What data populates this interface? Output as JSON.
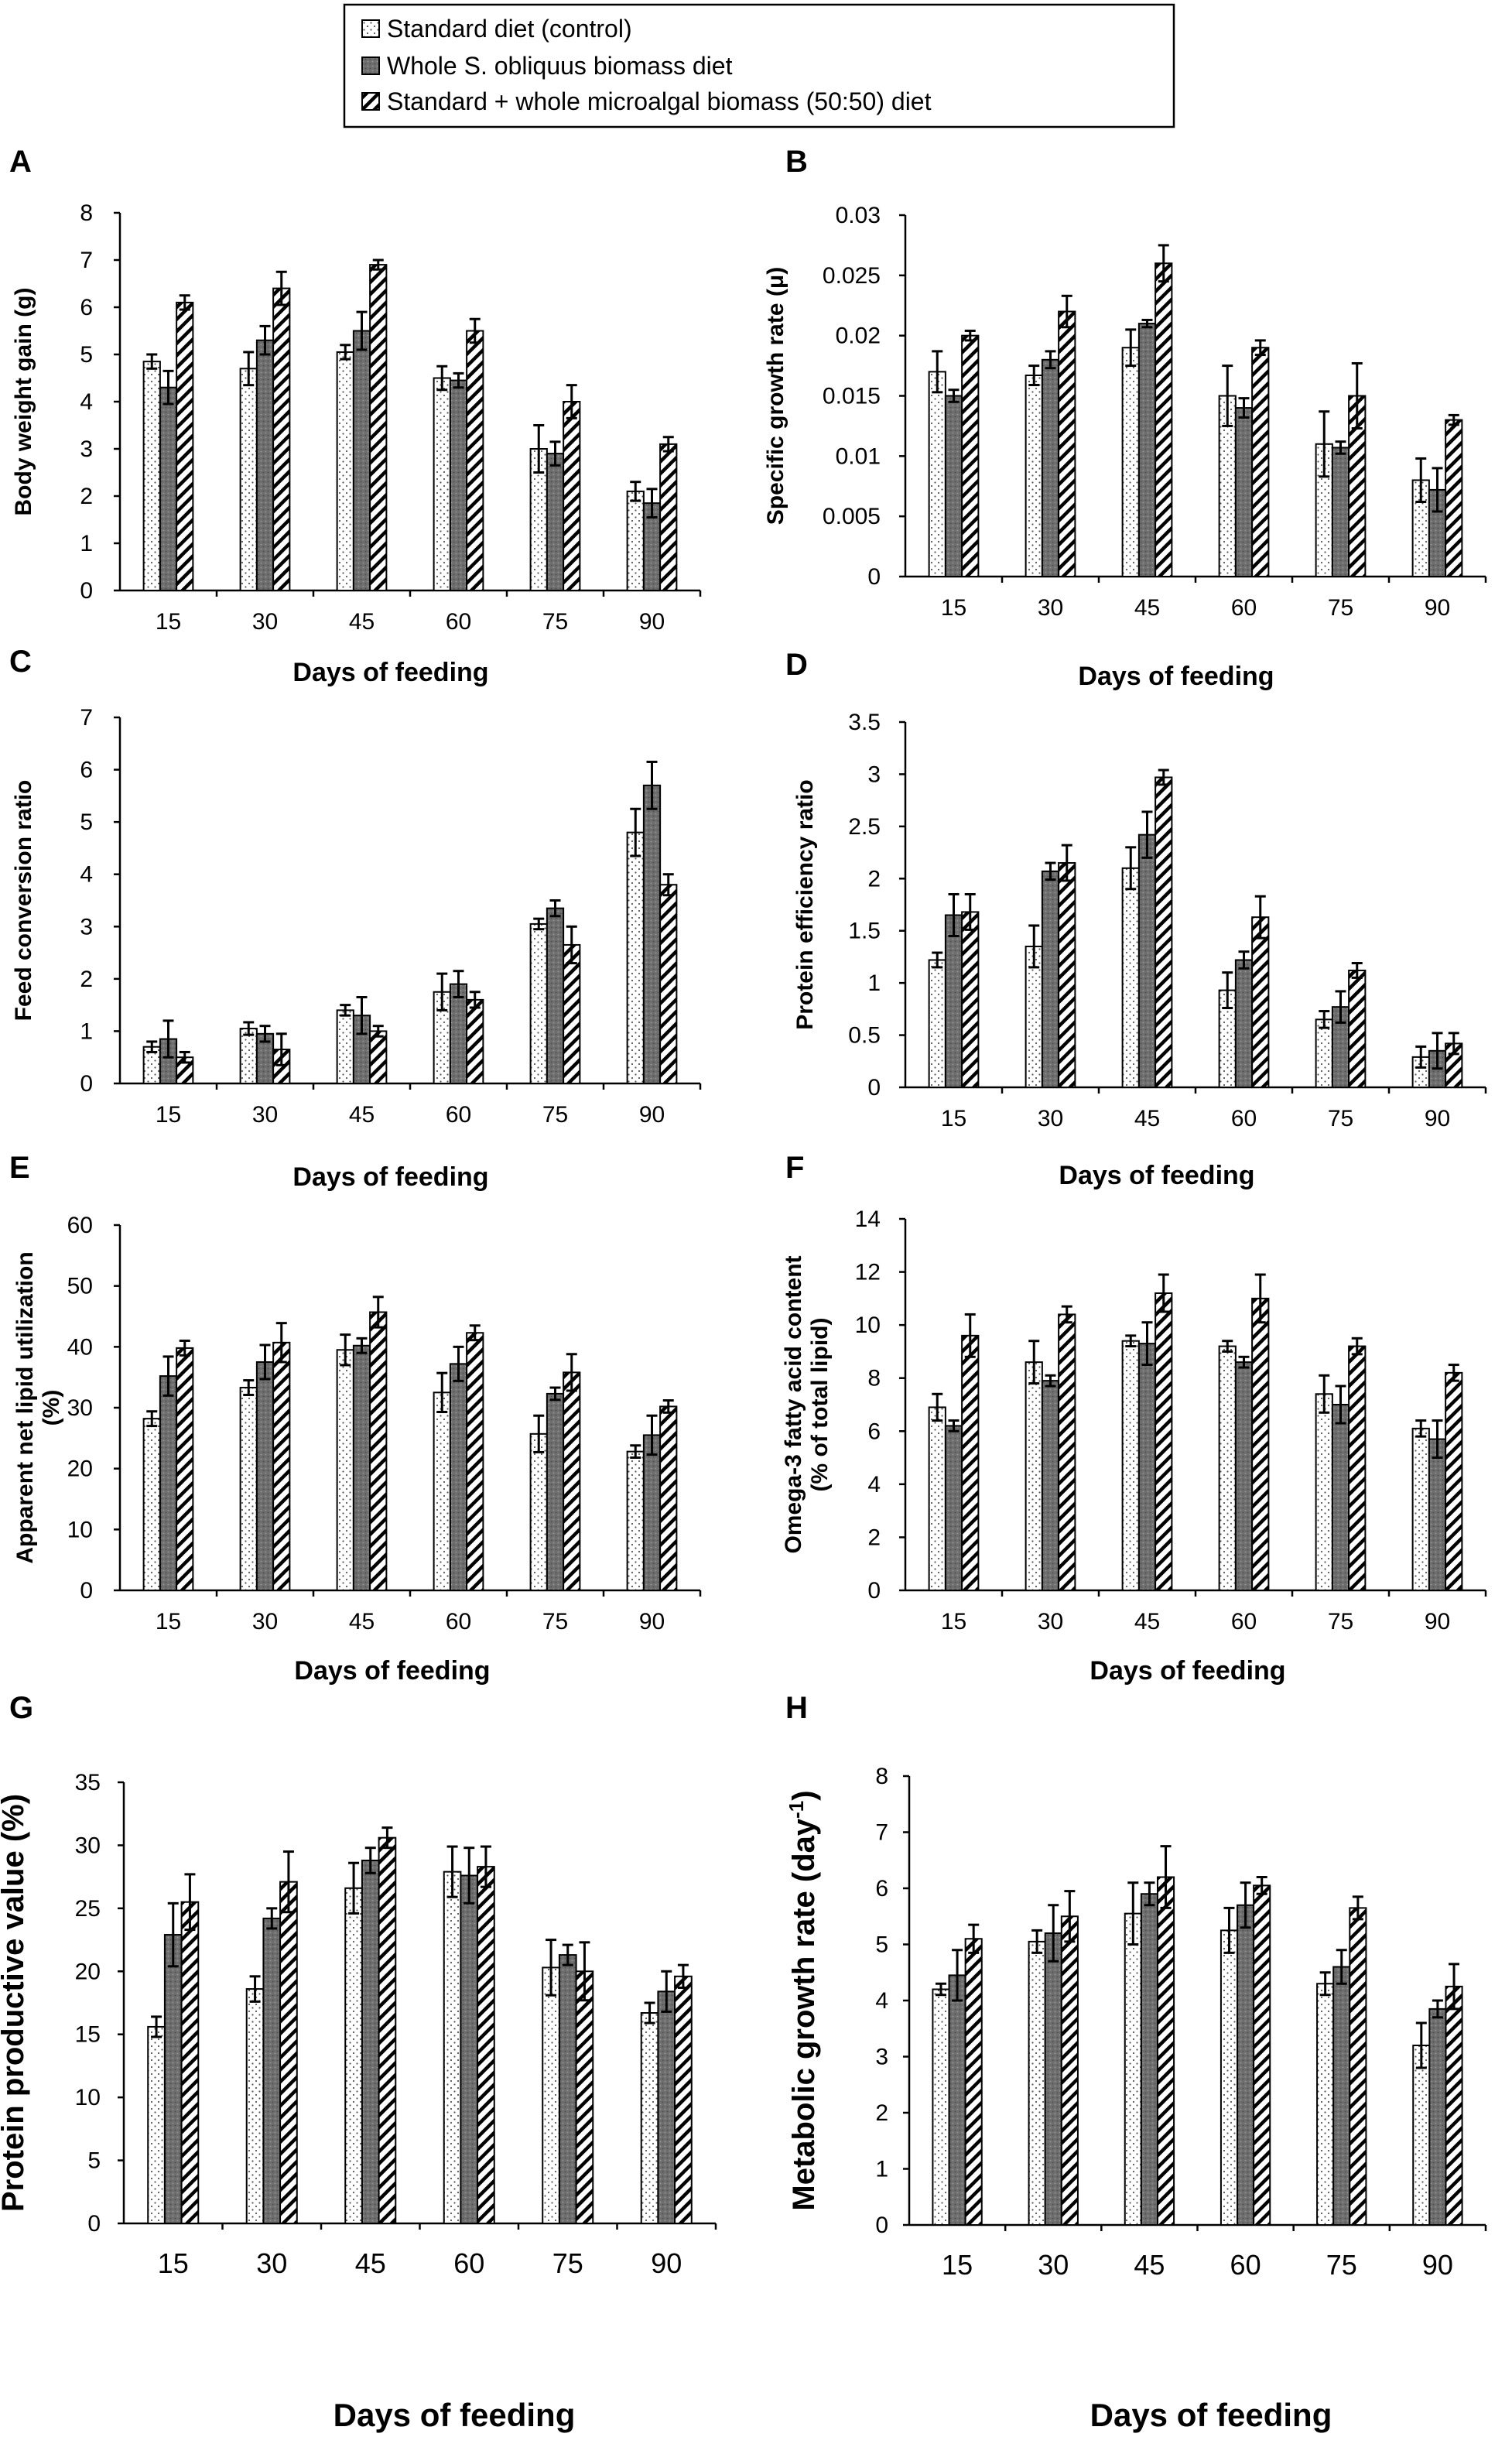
{
  "legend": [
    {
      "label": "Standard diet (control)",
      "pattern": "dots"
    },
    {
      "label": "Whole S. obliquus biomass diet",
      "pattern": "dark"
    },
    {
      "label": "Standard + whole microalgal biomass (50:50) diet",
      "pattern": "hatch"
    }
  ],
  "colors": {
    "axis": "#000000",
    "dark_fill": "#6e6e6e",
    "hatch": "#000000",
    "dots": "#555555"
  },
  "chart_data": [
    {
      "panel": "A",
      "type": "bar",
      "categories": [
        "15",
        "30",
        "45",
        "60",
        "75",
        "90"
      ],
      "ylabel": "Body weight gain (g)",
      "xlabel": "Days of feeding",
      "ylim": [
        0,
        8
      ],
      "yticks": [
        "0",
        "1",
        "2",
        "3",
        "4",
        "5",
        "6",
        "7",
        "8"
      ],
      "series": [
        {
          "name": "Standard diet (control)",
          "values": [
            4.85,
            4.7,
            5.05,
            4.5,
            3.0,
            2.1
          ],
          "errors": [
            0.15,
            0.35,
            0.15,
            0.25,
            0.5,
            0.2
          ]
        },
        {
          "name": "Whole S. obliquus biomass diet",
          "values": [
            4.3,
            5.3,
            5.5,
            4.45,
            2.9,
            1.85
          ],
          "errors": [
            0.35,
            0.3,
            0.4,
            0.15,
            0.25,
            0.3
          ]
        },
        {
          "name": "Standard + whole microalgal biomass (50:50) diet",
          "values": [
            6.1,
            6.4,
            6.9,
            5.5,
            4.0,
            3.1
          ],
          "errors": [
            0.15,
            0.35,
            0.1,
            0.25,
            0.35,
            0.15
          ]
        }
      ]
    },
    {
      "panel": "B",
      "type": "bar",
      "categories": [
        "15",
        "30",
        "45",
        "60",
        "75",
        "90"
      ],
      "ylabel": "Specific growth rate (μ)",
      "xlabel": "Days of feeding",
      "ylim": [
        0,
        0.03
      ],
      "yticks": [
        "0",
        "0.005",
        "0.01",
        "0.015",
        "0.02",
        "0.025",
        "0.03"
      ],
      "series": [
        {
          "name": "Standard diet (control)",
          "values": [
            0.017,
            0.0167,
            0.019,
            0.015,
            0.011,
            0.008
          ],
          "errors": [
            0.0017,
            0.0008,
            0.0015,
            0.0025,
            0.0027,
            0.0018
          ]
        },
        {
          "name": "Whole S. obliquus biomass diet",
          "values": [
            0.015,
            0.018,
            0.021,
            0.014,
            0.0107,
            0.0072
          ],
          "errors": [
            0.0005,
            0.0007,
            0.0003,
            0.0008,
            0.0005,
            0.0018
          ]
        },
        {
          "name": "Standard + whole microalgal biomass (50:50) diet",
          "values": [
            0.02,
            0.022,
            0.026,
            0.019,
            0.015,
            0.013
          ],
          "errors": [
            0.0004,
            0.0013,
            0.0015,
            0.0006,
            0.0027,
            0.0004
          ]
        }
      ]
    },
    {
      "panel": "C",
      "type": "bar",
      "categories": [
        "15",
        "30",
        "45",
        "60",
        "75",
        "90"
      ],
      "ylabel": "Feed conversion ratio",
      "xlabel": "Days of feeding",
      "ylim": [
        0,
        7
      ],
      "yticks": [
        "0",
        "1",
        "2",
        "3",
        "4",
        "5",
        "6",
        "7"
      ],
      "series": [
        {
          "name": "Standard diet (control)",
          "values": [
            0.7,
            1.05,
            1.4,
            1.75,
            3.05,
            4.8
          ],
          "errors": [
            0.1,
            0.12,
            0.1,
            0.35,
            0.1,
            0.45
          ]
        },
        {
          "name": "Whole S. obliquus biomass diet",
          "values": [
            0.85,
            0.95,
            1.3,
            1.9,
            3.35,
            5.7
          ],
          "errors": [
            0.35,
            0.15,
            0.35,
            0.25,
            0.15,
            0.45
          ]
        },
        {
          "name": "Standard + whole microalgal biomass (50:50) diet",
          "values": [
            0.5,
            0.65,
            1.0,
            1.6,
            2.65,
            3.8
          ],
          "errors": [
            0.1,
            0.3,
            0.1,
            0.15,
            0.35,
            0.2
          ]
        }
      ]
    },
    {
      "panel": "D",
      "type": "bar",
      "categories": [
        "15",
        "30",
        "45",
        "60",
        "75",
        "90"
      ],
      "ylabel": "Protein efficiency ratio",
      "xlabel": "Days of feeding",
      "ylim": [
        0,
        3.5
      ],
      "yticks": [
        "0",
        "0.5",
        "1",
        "1.5",
        "2",
        "2.5",
        "3",
        "3.5"
      ],
      "series": [
        {
          "name": "Standard diet (control)",
          "values": [
            1.22,
            1.35,
            2.1,
            0.93,
            0.65,
            0.29
          ],
          "errors": [
            0.07,
            0.2,
            0.2,
            0.17,
            0.08,
            0.1
          ]
        },
        {
          "name": "Whole S. obliquus biomass diet",
          "values": [
            1.65,
            2.07,
            2.42,
            1.22,
            0.77,
            0.35
          ],
          "errors": [
            0.2,
            0.08,
            0.22,
            0.08,
            0.15,
            0.17
          ]
        },
        {
          "name": "Standard + whole microalgal biomass (50:50) diet",
          "values": [
            1.68,
            2.15,
            2.97,
            1.63,
            1.12,
            0.42
          ],
          "errors": [
            0.17,
            0.17,
            0.07,
            0.2,
            0.07,
            0.1
          ]
        }
      ]
    },
    {
      "panel": "E",
      "type": "bar",
      "categories": [
        "15",
        "30",
        "45",
        "60",
        "75",
        "90"
      ],
      "ylabel": "Apparent net lipid utilization (%)",
      "xlabel": "Days of feeding",
      "ylim": [
        0,
        60
      ],
      "yticks": [
        "0",
        "10",
        "20",
        "30",
        "40",
        "50",
        "60"
      ],
      "series": [
        {
          "name": "Standard diet (control)",
          "values": [
            28.2,
            33.3,
            39.5,
            32.5,
            25.7,
            22.8
          ],
          "errors": [
            1.2,
            1.2,
            2.5,
            3.2,
            3.0,
            1.0
          ]
        },
        {
          "name": "Whole S. obliquus biomass diet",
          "values": [
            35.2,
            37.5,
            40.2,
            37.2,
            32.3,
            25.5
          ],
          "errors": [
            3.2,
            2.8,
            1.2,
            2.8,
            1.0,
            3.2
          ]
        },
        {
          "name": "Standard + whole microalgal biomass (50:50) diet",
          "values": [
            39.8,
            40.7,
            45.7,
            42.3,
            35.8,
            30.2
          ],
          "errors": [
            1.2,
            3.2,
            2.5,
            1.2,
            3.0,
            1.0
          ]
        }
      ]
    },
    {
      "panel": "F",
      "type": "bar",
      "categories": [
        "15",
        "30",
        "45",
        "60",
        "75",
        "90"
      ],
      "ylabel": "Omega-3 fatty acid content (% of total lipid)",
      "xlabel": "Days of feeding",
      "ylim": [
        0,
        14
      ],
      "yticks": [
        "0",
        "2",
        "4",
        "6",
        "8",
        "10",
        "12",
        "14"
      ],
      "series": [
        {
          "name": "Standard diet (control)",
          "values": [
            6.9,
            8.6,
            9.4,
            9.2,
            7.4,
            6.1
          ],
          "errors": [
            0.5,
            0.8,
            0.2,
            0.2,
            0.7,
            0.3
          ]
        },
        {
          "name": "Whole S. obliquus biomass diet",
          "values": [
            6.2,
            7.9,
            9.3,
            8.6,
            7.0,
            5.7
          ],
          "errors": [
            0.2,
            0.2,
            0.8,
            0.2,
            0.7,
            0.7
          ]
        },
        {
          "name": "Standard + whole microalgal biomass (50:50) diet",
          "values": [
            9.6,
            10.4,
            11.2,
            11.0,
            9.2,
            8.2
          ],
          "errors": [
            0.8,
            0.3,
            0.7,
            0.9,
            0.3,
            0.3
          ]
        }
      ]
    },
    {
      "panel": "G",
      "type": "bar",
      "categories": [
        "15",
        "30",
        "45",
        "60",
        "75",
        "90"
      ],
      "ylabel": "Protein productive value (%)",
      "xlabel": "Days of feeding",
      "ylim": [
        0,
        35
      ],
      "yticks": [
        "0",
        "5",
        "10",
        "15",
        "20",
        "25",
        "30",
        "35"
      ],
      "series": [
        {
          "name": "Standard diet (control)",
          "values": [
            15.6,
            18.6,
            26.6,
            27.9,
            20.3,
            16.7
          ],
          "errors": [
            0.8,
            1.0,
            2.0,
            2.0,
            2.2,
            0.8
          ]
        },
        {
          "name": "Whole S. obliquus biomass diet",
          "values": [
            22.9,
            24.2,
            28.8,
            27.6,
            21.3,
            18.4
          ],
          "errors": [
            2.5,
            0.8,
            1.0,
            2.2,
            0.8,
            1.6
          ]
        },
        {
          "name": "Standard + whole microalgal biomass (50:50) diet",
          "values": [
            25.5,
            27.1,
            30.6,
            28.3,
            20.0,
            19.6
          ],
          "errors": [
            2.2,
            2.4,
            0.8,
            1.6,
            2.3,
            0.9
          ]
        }
      ]
    },
    {
      "panel": "H",
      "type": "bar",
      "categories": [
        "15",
        "30",
        "45",
        "60",
        "75",
        "90"
      ],
      "ylabel": "Metabolic growth rate (day",
      "ylabel_sup": "-1",
      "ylabel_end": ")",
      "xlabel": "Days of feeding",
      "ylim": [
        0,
        8
      ],
      "yticks": [
        "0",
        "1",
        "2",
        "3",
        "4",
        "5",
        "6",
        "7",
        "8"
      ],
      "series": [
        {
          "name": "Standard diet (control)",
          "values": [
            4.2,
            5.05,
            5.55,
            5.25,
            4.3,
            3.2
          ],
          "errors": [
            0.1,
            0.2,
            0.55,
            0.4,
            0.2,
            0.4
          ]
        },
        {
          "name": "Whole S. obliquus biomass diet",
          "values": [
            4.45,
            5.2,
            5.9,
            5.7,
            4.6,
            3.85
          ],
          "errors": [
            0.45,
            0.5,
            0.2,
            0.4,
            0.3,
            0.15
          ]
        },
        {
          "name": "Standard + whole microalgal biomass (50:50) diet",
          "values": [
            5.1,
            5.5,
            6.2,
            6.05,
            5.65,
            4.25
          ],
          "errors": [
            0.25,
            0.45,
            0.55,
            0.15,
            0.2,
            0.4
          ]
        }
      ]
    }
  ]
}
